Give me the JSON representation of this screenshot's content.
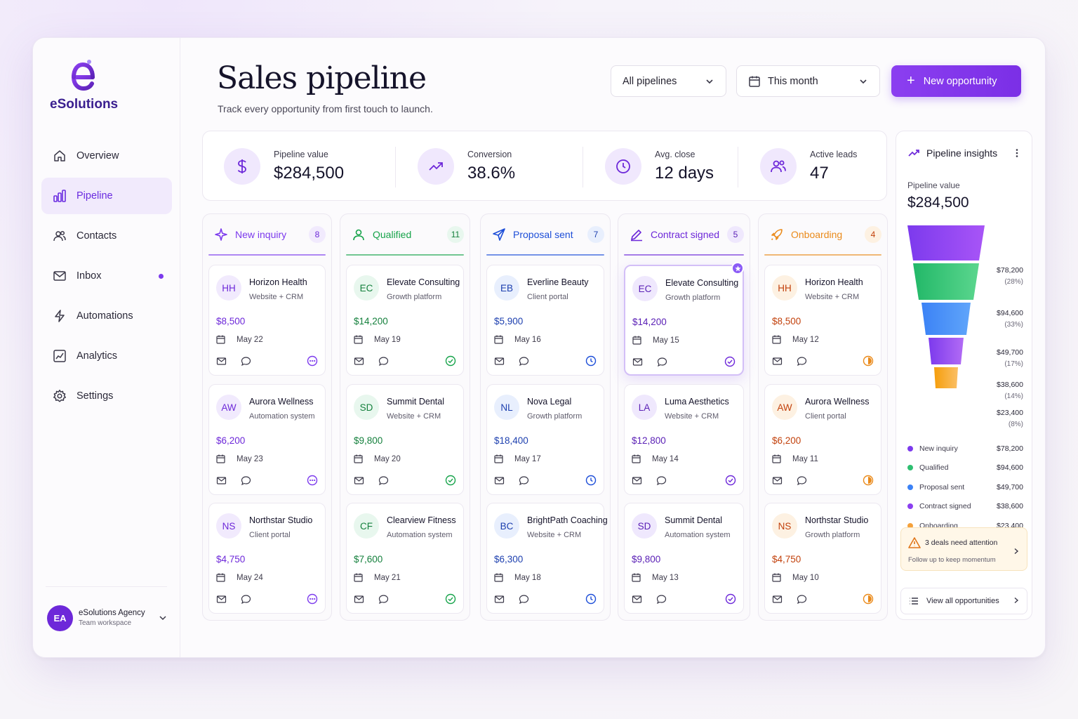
{
  "brand": {
    "logo_letter": "e",
    "name": "eSolutions"
  },
  "sidebar": {
    "items": [
      {
        "label": "Overview",
        "icon": "home-icon"
      },
      {
        "label": "Pipeline",
        "icon": "bar-chart-icon"
      },
      {
        "label": "Contacts",
        "icon": "users-icon"
      },
      {
        "label": "Inbox",
        "icon": "mail-icon"
      },
      {
        "label": "Automations",
        "icon": "lightning-icon"
      },
      {
        "label": "Analytics",
        "icon": "analytics-icon"
      },
      {
        "label": "Settings",
        "icon": "gear-icon"
      }
    ],
    "workspace": {
      "initials": "EA",
      "name": "eSolutions Agency",
      "sub": "Team workspace"
    }
  },
  "header": {
    "title": "Sales pipeline",
    "subtitle": "Track every opportunity from first touch to launch.",
    "pipeline_select": "All pipelines",
    "date_select": "This month",
    "new_button": "New opportunity"
  },
  "stats": [
    {
      "label": "Pipeline value",
      "value": "$284,500",
      "icon": "dollar-icon"
    },
    {
      "label": "Conversion",
      "value": "38.6%",
      "icon": "trend-up-icon"
    },
    {
      "label": "Avg. close",
      "value": "12 days",
      "icon": "clock-icon"
    },
    {
      "label": "Active leads",
      "value": "47",
      "icon": "users-icon"
    }
  ],
  "columns": [
    {
      "label": "New inquiry",
      "count": "8",
      "color": "#7c3aed",
      "cards": [
        {
          "initials": "HH",
          "name": "Horizon Health",
          "sub": "Website + CRM",
          "amount": "$8,500",
          "date": "May 22"
        },
        {
          "initials": "AW",
          "name": "Aurora Wellness",
          "sub": "Automation system",
          "amount": "$6,200",
          "date": "May 23"
        },
        {
          "initials": "NS",
          "name": "Northstar Studio",
          "sub": "Client portal",
          "amount": "$4,750",
          "date": "May 24"
        }
      ]
    },
    {
      "label": "Qualified",
      "count": "11",
      "color": "#16a34a",
      "cards": [
        {
          "initials": "EC",
          "name": "Elevate Consulting",
          "sub": "Growth platform",
          "amount": "$14,200",
          "date": "May 19"
        },
        {
          "initials": "SD",
          "name": "Summit Dental",
          "sub": "Website + CRM",
          "amount": "$9,800",
          "date": "May 20"
        },
        {
          "initials": "CF",
          "name": "Clearview Fitness",
          "sub": "Automation system",
          "amount": "$7,600",
          "date": "May 21"
        }
      ]
    },
    {
      "label": "Proposal sent",
      "count": "7",
      "color": "#1d4ed8",
      "cards": [
        {
          "initials": "EB",
          "name": "Everline Beauty",
          "sub": "Client portal",
          "amount": "$5,900",
          "date": "May 16"
        },
        {
          "initials": "NL",
          "name": "Nova Legal",
          "sub": "Growth platform",
          "amount": "$18,400",
          "date": "May 17"
        },
        {
          "initials": "BC",
          "name": "BrightPath Coaching",
          "sub": "Website + CRM",
          "amount": "$6,300",
          "date": "May 18"
        }
      ]
    },
    {
      "label": "Contract signed",
      "count": "5",
      "color": "#6d28d9",
      "cards": [
        {
          "initials": "EC",
          "name": "Elevate Consulting",
          "sub": "Growth platform",
          "amount": "$14,200",
          "date": "May 15"
        },
        {
          "initials": "LA",
          "name": "Luma Aesthetics",
          "sub": "Website + CRM",
          "amount": "$12,800",
          "date": "May 14"
        },
        {
          "initials": "SD",
          "name": "Summit Dental",
          "sub": "Automation system",
          "amount": "$9,800",
          "date": "May 13"
        }
      ]
    },
    {
      "label": "Onboarding",
      "count": "4",
      "color": "#ea8a1a",
      "cards": [
        {
          "initials": "HH",
          "name": "Horizon Health",
          "sub": "Website + CRM",
          "amount": "$8,500",
          "date": "May 12"
        },
        {
          "initials": "AW",
          "name": "Aurora Wellness",
          "sub": "Client portal",
          "amount": "$6,200",
          "date": "May 11"
        },
        {
          "initials": "NS",
          "name": "Northstar Studio",
          "sub": "Growth platform",
          "amount": "$4,750",
          "date": "May 10"
        }
      ]
    }
  ],
  "insights": {
    "title": "Pipeline insights",
    "value_label": "Pipeline value",
    "value": "$284,500",
    "funnel": [
      {
        "name": "New inquiry",
        "amount": "$78,200",
        "pct": "(28%)",
        "color": "#7c3aed"
      },
      {
        "name": "Qualified",
        "amount": "$94,600",
        "pct": "(33%)",
        "color": "#2fbf71"
      },
      {
        "name": "Proposal sent",
        "amount": "$49,700",
        "pct": "(17%)",
        "color": "#3b82f6"
      },
      {
        "name": "Contract signed",
        "amount": "$38,600",
        "pct": "(14%)",
        "color": "#8b3ff0"
      },
      {
        "name": "Onboarding",
        "amount": "$23,400",
        "pct": "(8%)",
        "color": "#f5a13a"
      }
    ],
    "alert_title": "3 deals need attention",
    "alert_sub": "Follow up to keep momentum",
    "view_all": "View all opportunities"
  }
}
